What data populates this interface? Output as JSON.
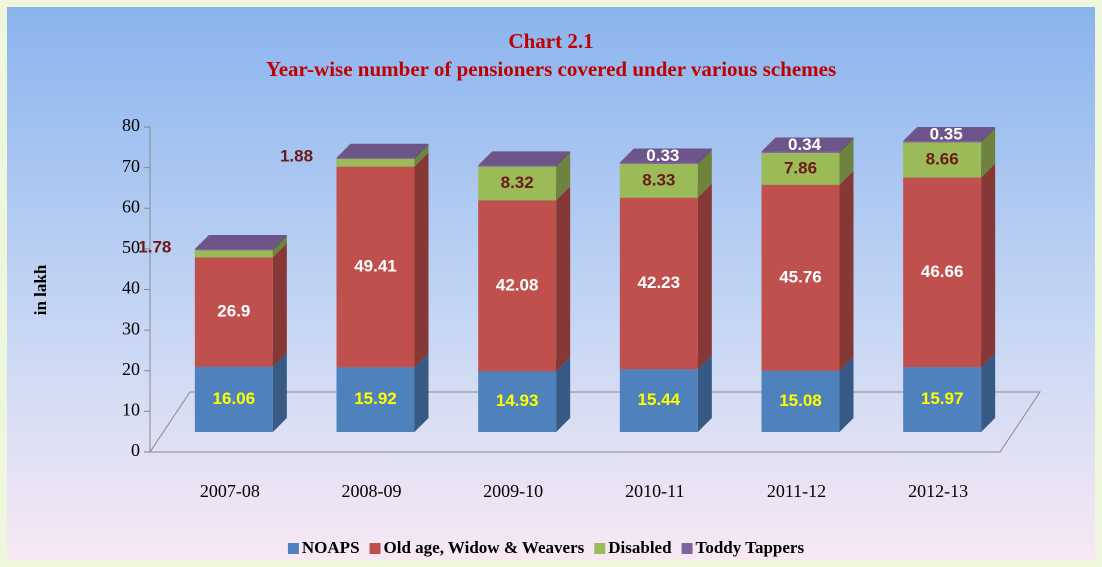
{
  "chart_data": {
    "type": "bar3d_stacked",
    "title": "Chart 2.1",
    "subtitle": "Year-wise number of pensioners covered under various schemes",
    "y_label": "in lakh",
    "categories": [
      "2007-08",
      "2008-09",
      "2009-10",
      "2010-11",
      "2011-12",
      "2012-13"
    ],
    "series": [
      {
        "name": "NOAPS",
        "color": "#4f81bd",
        "label_color": "#ffff00",
        "values": [
          16.06,
          15.92,
          14.93,
          15.44,
          15.08,
          15.97
        ]
      },
      {
        "name": "Old age, Widow & Weavers",
        "color": "#c0504d",
        "label_color": "#ffffff",
        "values": [
          26.9,
          49.41,
          42.08,
          42.23,
          45.76,
          46.66
        ]
      },
      {
        "name": "Disabled",
        "color": "#9bbb59",
        "label_color": "#6b1a1a",
        "values": [
          1.78,
          1.88,
          8.32,
          8.33,
          7.86,
          8.66
        ]
      },
      {
        "name": "Toddy Tappers",
        "color": "#8064a2",
        "label_color": "#ffffff",
        "values": [
          0.3,
          0.3,
          0.3,
          0.33,
          0.34,
          0.35
        ],
        "value_labels": [
          null,
          null,
          null,
          "0.33",
          "0.34",
          "0.35"
        ]
      }
    ],
    "ylim": [
      0,
      80
    ],
    "yticks": [
      0,
      10,
      20,
      30,
      40,
      50,
      60,
      70,
      80
    ],
    "legend": "bottom"
  }
}
